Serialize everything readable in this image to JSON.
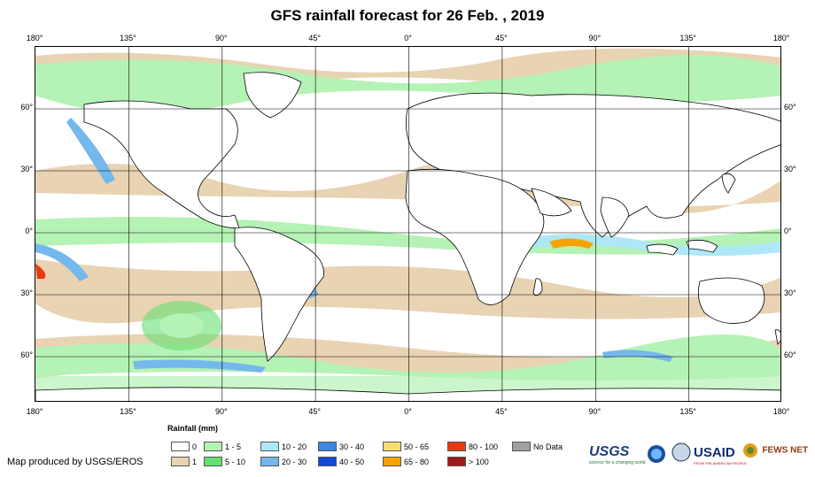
{
  "title": "GFS rainfall forecast for 26 Feb. , 2019",
  "lon_ticks": [
    "180°",
    "135°",
    "90°",
    "45°",
    "0°",
    "45°",
    "90°",
    "135°",
    "180°"
  ],
  "lat_ticks": [
    "60°",
    "30°",
    "0°",
    "30°",
    "60°"
  ],
  "legend": {
    "title": "Rainfall (mm)",
    "items": [
      {
        "label": "0",
        "color": "#ffffff"
      },
      {
        "label": "1",
        "color": "#e8d3b3"
      },
      {
        "label": "1 - 5",
        "color": "#b5f2b5"
      },
      {
        "label": "5 - 10",
        "color": "#66e070"
      },
      {
        "label": "10 - 20",
        "color": "#aee8f7"
      },
      {
        "label": "20 - 30",
        "color": "#74b8ec"
      },
      {
        "label": "30 - 40",
        "color": "#3f86e0"
      },
      {
        "label": "40 - 50",
        "color": "#1248d8"
      },
      {
        "label": "50 - 65",
        "color": "#f7dc74"
      },
      {
        "label": "65 - 80",
        "color": "#f5a300"
      },
      {
        "label": "80 - 100",
        "color": "#e83a10"
      },
      {
        "label": "> 100",
        "color": "#a11a1a"
      },
      {
        "label": "No Data",
        "color": "#a0a0a0"
      }
    ]
  },
  "credit": "Map produced by USGS/EROS",
  "logos": {
    "usgs": "USGS",
    "usgs_tagline": "science for a changing world",
    "usaid": "USAID",
    "usaid_tagline": "FROM THE AMERICAN PEOPLE",
    "fews": "FEWS NET"
  }
}
